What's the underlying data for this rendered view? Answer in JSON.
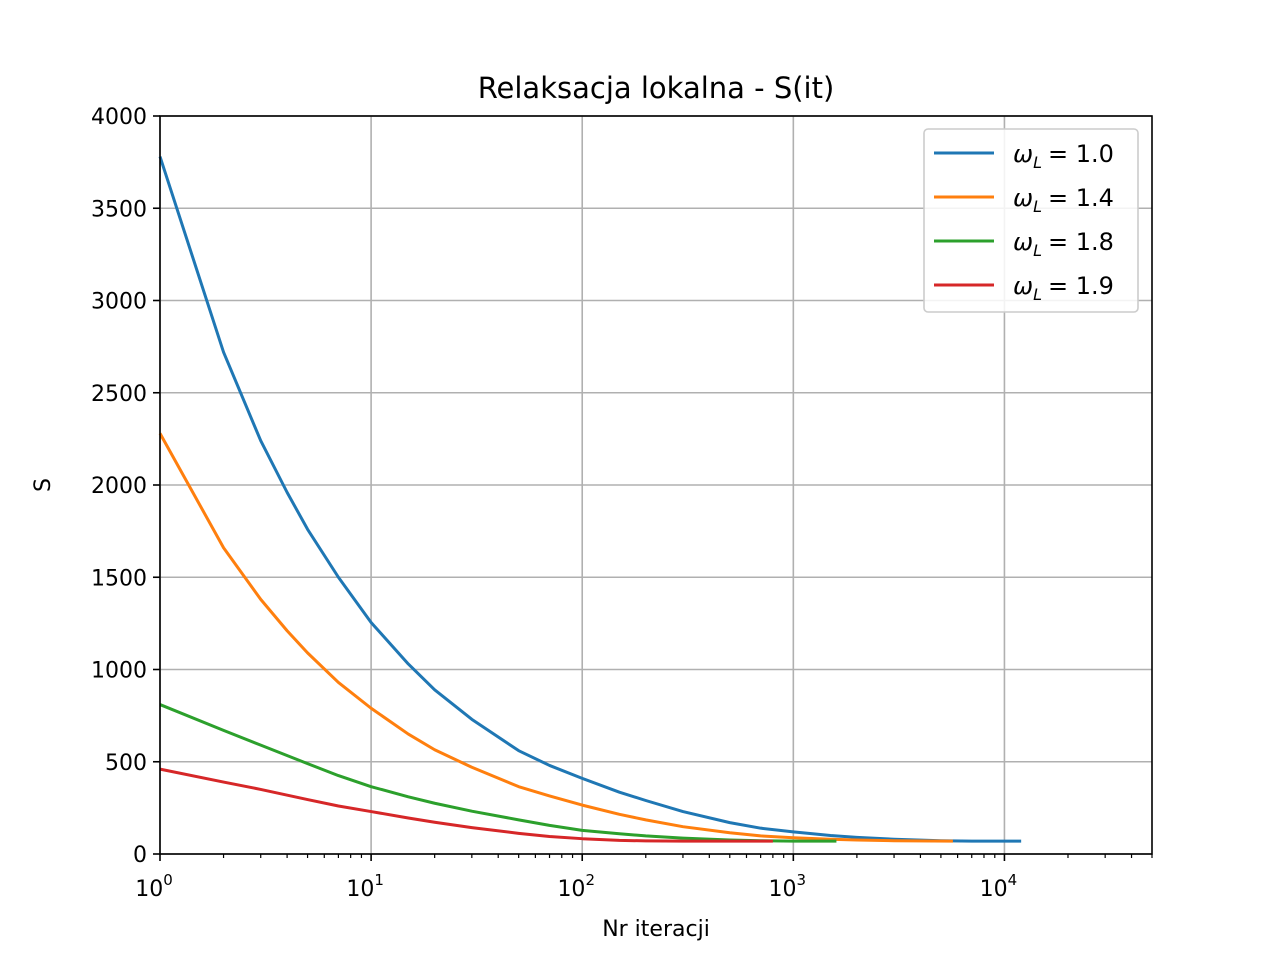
{
  "chart_data": {
    "type": "line",
    "title": "Relaksacja lokalna - S(it)",
    "xlabel": "Nr iteracji",
    "ylabel": "S",
    "xscale": "log",
    "xlim": [
      1,
      50000
    ],
    "ylim": [
      0,
      4000
    ],
    "grid": true,
    "legend_position": "top-right",
    "xticks": [
      {
        "base": "10",
        "exp": "0"
      },
      {
        "base": "10",
        "exp": "1"
      },
      {
        "base": "10",
        "exp": "2"
      },
      {
        "base": "10",
        "exp": "3"
      },
      {
        "base": "10",
        "exp": "4"
      }
    ],
    "yticks": [
      "0",
      "500",
      "1000",
      "1500",
      "2000",
      "2500",
      "3000",
      "3500",
      "4000"
    ],
    "series": [
      {
        "name": "ωL = 1.0",
        "name_symbol": "ω",
        "name_sub": "L",
        "name_value": "= 1.0",
        "color": "#1f77b4",
        "x": [
          1,
          2,
          3,
          4,
          5,
          7,
          10,
          15,
          20,
          30,
          50,
          70,
          100,
          150,
          200,
          300,
          500,
          700,
          1000,
          1500,
          2000,
          3000,
          5000,
          7000,
          12000
        ],
        "y": [
          3780,
          2720,
          2240,
          1960,
          1760,
          1500,
          1255,
          1030,
          890,
          730,
          560,
          480,
          410,
          335,
          290,
          230,
          170,
          140,
          120,
          100,
          90,
          80,
          72,
          70,
          70
        ]
      },
      {
        "name": "ωL = 1.4",
        "name_symbol": "ω",
        "name_sub": "L",
        "name_value": "= 1.4",
        "color": "#ff7f0e",
        "x": [
          1,
          2,
          3,
          4,
          5,
          7,
          10,
          15,
          20,
          30,
          50,
          70,
          100,
          150,
          200,
          300,
          500,
          700,
          1000,
          1500,
          2000,
          3000,
          5700
        ],
        "y": [
          2280,
          1660,
          1380,
          1210,
          1090,
          930,
          790,
          650,
          565,
          470,
          365,
          315,
          265,
          215,
          185,
          148,
          115,
          98,
          88,
          80,
          76,
          72,
          70
        ]
      },
      {
        "name": "ωL = 1.8",
        "name_symbol": "ω",
        "name_sub": "L",
        "name_value": "= 1.8",
        "color": "#2ca02c",
        "x": [
          1,
          2,
          3,
          5,
          7,
          10,
          15,
          20,
          30,
          50,
          70,
          100,
          150,
          200,
          300,
          500,
          700,
          1000,
          1600
        ],
        "y": [
          810,
          670,
          590,
          490,
          425,
          365,
          310,
          275,
          232,
          185,
          155,
          128,
          110,
          98,
          86,
          76,
          72,
          70,
          70
        ]
      },
      {
        "name": "ωL = 1.9",
        "name_symbol": "ω",
        "name_sub": "L",
        "name_value": "= 1.9",
        "color": "#d62728",
        "x": [
          1,
          2,
          3,
          5,
          7,
          10,
          15,
          20,
          30,
          50,
          70,
          100,
          150,
          200,
          300,
          500,
          800
        ],
        "y": [
          460,
          390,
          350,
          295,
          260,
          230,
          195,
          172,
          143,
          112,
          95,
          83,
          74,
          71,
          70,
          70,
          70
        ]
      }
    ]
  }
}
